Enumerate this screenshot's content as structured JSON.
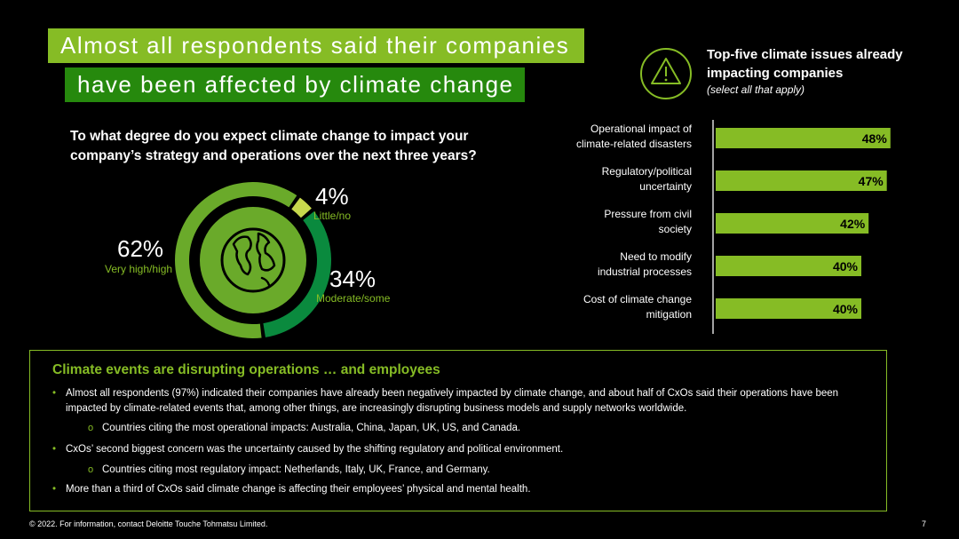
{
  "title": {
    "line1": "Almost all respondents said their companies",
    "line2": "have been affected by climate change"
  },
  "question": "To what degree do you expect climate change to impact your company’s strategy and operations over the next three years?",
  "issues": {
    "title": "Top-five climate issues already impacting companies",
    "subtitle": "(select all that apply)"
  },
  "chart_data": [
    {
      "type": "pie",
      "variant": "donut",
      "slices": [
        {
          "label": "Little/no",
          "value": 4,
          "display": "4%",
          "color": "#c7d94d"
        },
        {
          "label": "Moderate/some",
          "value": 34,
          "display": "34%",
          "color": "#0a8a3e"
        },
        {
          "label": "Very high/high",
          "value": 62,
          "display": "62%",
          "color": "#6aaa2a"
        }
      ],
      "center_icon": "globe-icon"
    },
    {
      "type": "bar",
      "orientation": "horizontal",
      "categories": [
        [
          "Operational impact of",
          "climate-related disasters"
        ],
        [
          "Regulatory/political",
          "uncertainty"
        ],
        [
          "Pressure from civil",
          "society"
        ],
        [
          "Need to modify",
          "industrial processes"
        ],
        [
          "Cost of climate change",
          "mitigation"
        ]
      ],
      "values": [
        48,
        47,
        42,
        40,
        40
      ],
      "value_labels": [
        "48%",
        "47%",
        "42%",
        "40%",
        "40%"
      ],
      "xlim": [
        0,
        50
      ],
      "bar_color": "#86bc25"
    }
  ],
  "box": {
    "heading": "Climate events are disrupting operations … and employees",
    "bullets": [
      "Almost all respondents (97%) indicated their companies have already been negatively impacted by climate change, and about half of CxOs said their operations have been impacted by climate-related events that, among other things, are increasingly disrupting business models and supply networks worldwide.",
      "CxOs’ second biggest concern was the uncertainty caused by the shifting regulatory and political environment.",
      "More than a third of CxOs said climate change is affecting their employees’ physical and mental health."
    ],
    "subbullets": [
      "Countries citing the most operational impacts: Australia, China, Japan, UK, US, and Canada.",
      "Countries citing most regulatory impact: Netherlands, Italy, UK, France, and Germany."
    ],
    "bullet_glyph": "•",
    "sub_glyph": "o"
  },
  "footer": "© 2022. For information, contact Deloitte Touche Tohmatsu Limited.",
  "page_number": "7"
}
